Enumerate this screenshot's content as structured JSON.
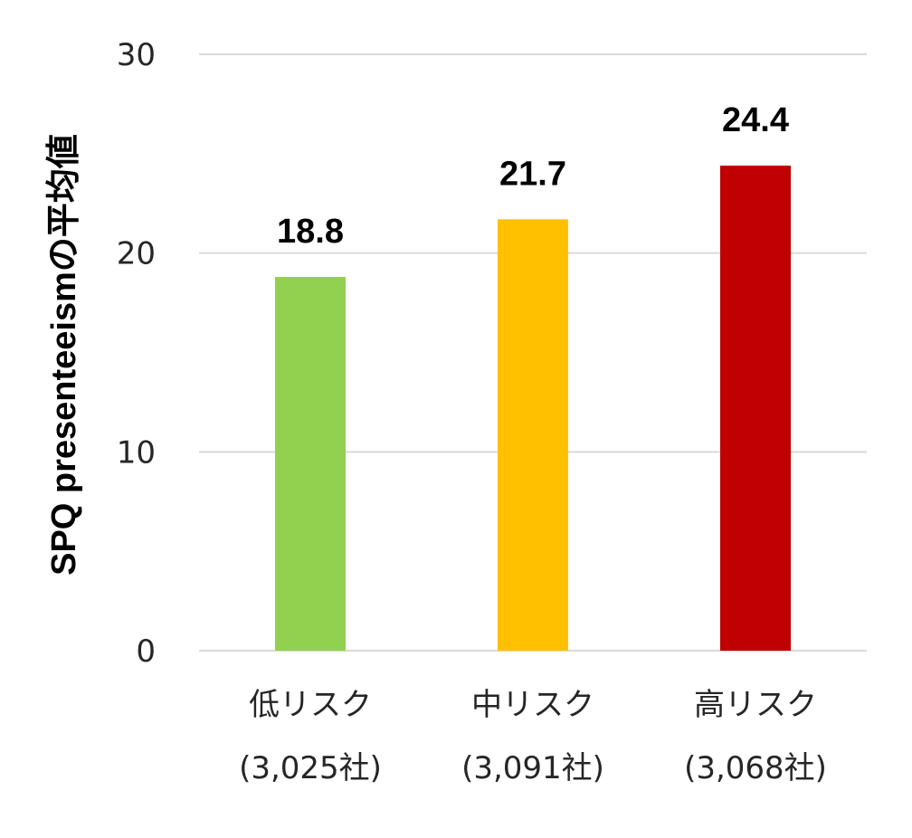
{
  "chart_data": {
    "type": "bar",
    "title": "",
    "ylabel": "SPQ presenteeismの平均値",
    "xlabel": "",
    "ylim": [
      0,
      30
    ],
    "yticks": [
      0,
      10,
      20,
      30
    ],
    "grid": true,
    "categories": [
      {
        "name": "低リスク",
        "sub": "(3,025社)"
      },
      {
        "name": "中リスク",
        "sub": "(3,091社)"
      },
      {
        "name": "高リスク",
        "sub": "(3,068社)"
      }
    ],
    "values": [
      18.8,
      21.7,
      24.4
    ],
    "value_labels": [
      "18.8",
      "21.7",
      "24.4"
    ],
    "colors": [
      "#92d050",
      "#ffc000",
      "#c00000"
    ]
  }
}
